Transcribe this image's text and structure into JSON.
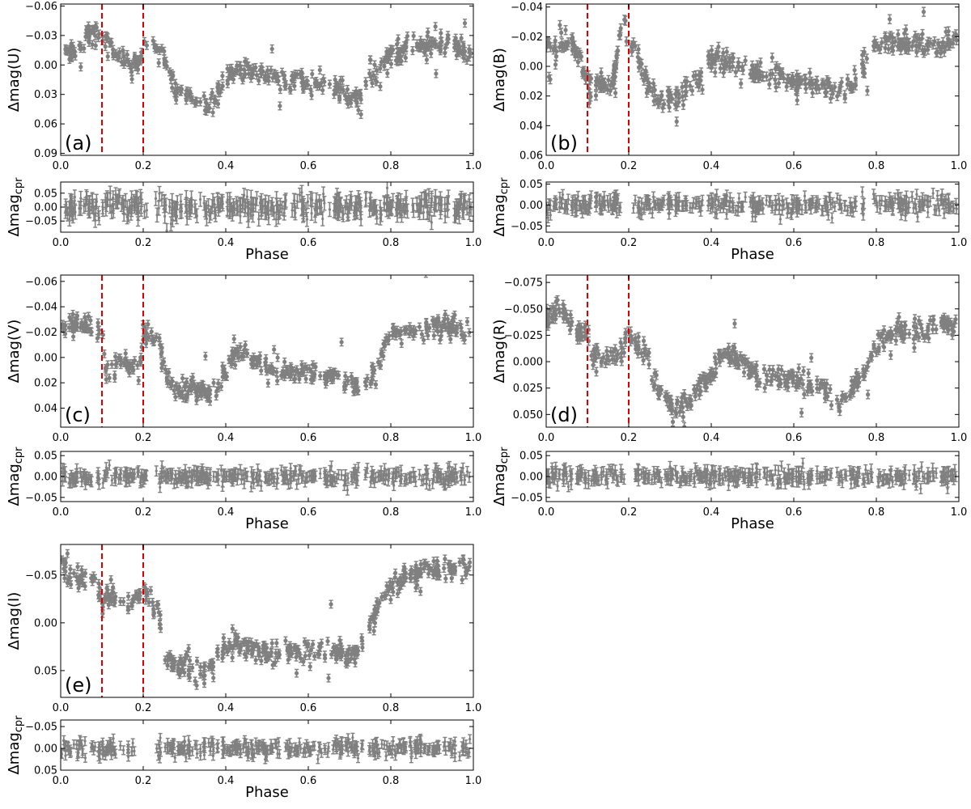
{
  "figure": {
    "colors": {
      "points": "#808080",
      "marker_lines": "#dd0000",
      "axes": "#000000"
    },
    "marker_phases": [
      0.1,
      0.2
    ]
  },
  "chart_data": [
    {
      "type": "scatter",
      "panel_label": "(a)",
      "title": "",
      "xlabel": "Phase",
      "ylabel_main": "Δmag(U)",
      "ylabel_resid_base": "Δmag",
      "ylabel_resid_sub": "cpr",
      "xlim": [
        0,
        1
      ],
      "ylim_main": [
        0.092,
        -0.062
      ],
      "inverted_y_main": true,
      "yticks_main": [
        -0.06,
        -0.03,
        0.0,
        0.03,
        0.06,
        0.09
      ],
      "ytick_labels_main": [
        "−0.06",
        "−0.03",
        "0.00",
        "0.03",
        "0.06",
        "0.09"
      ],
      "ylim_resid": [
        -0.09,
        0.09
      ],
      "yticks_resid": [
        -0.05,
        0.0,
        0.05
      ],
      "ytick_labels_resid": [
        "−0.05",
        "0.00",
        "0.05"
      ],
      "xticks": [
        0.0,
        0.2,
        0.4,
        0.6,
        0.8,
        1.0
      ],
      "xtick_labels": [
        "0.0",
        "0.2",
        "0.4",
        "0.6",
        "0.8",
        "1.0"
      ],
      "light_curve": [
        [
          0.0,
          -0.014
        ],
        [
          0.02,
          -0.01
        ],
        [
          0.04,
          -0.018
        ],
        [
          0.06,
          -0.03
        ],
        [
          0.08,
          -0.032
        ],
        [
          0.1,
          -0.025
        ],
        [
          0.12,
          -0.025
        ],
        [
          0.13,
          -0.012
        ],
        [
          0.15,
          -0.005
        ],
        [
          0.17,
          0.0
        ],
        [
          0.19,
          0.0
        ],
        [
          0.2,
          -0.022
        ],
        [
          0.22,
          -0.018
        ],
        [
          0.24,
          -0.012
        ],
        [
          0.26,
          0.005
        ],
        [
          0.28,
          0.025
        ],
        [
          0.3,
          0.025
        ],
        [
          0.33,
          0.035
        ],
        [
          0.36,
          0.04
        ],
        [
          0.38,
          0.03
        ],
        [
          0.4,
          0.015
        ],
        [
          0.42,
          0.005
        ],
        [
          0.45,
          0.0
        ],
        [
          0.5,
          0.012
        ],
        [
          0.55,
          0.015
        ],
        [
          0.6,
          0.018
        ],
        [
          0.65,
          0.025
        ],
        [
          0.7,
          0.03
        ],
        [
          0.72,
          0.035
        ],
        [
          0.75,
          0.015
        ],
        [
          0.78,
          0.0
        ],
        [
          0.8,
          -0.01
        ],
        [
          0.85,
          -0.02
        ],
        [
          0.9,
          -0.022
        ],
        [
          0.95,
          -0.02
        ],
        [
          0.97,
          -0.015
        ]
      ],
      "light_curve_error": 0.004,
      "residual_error": 0.025,
      "residual_scatter": 0.035,
      "residual_gaps": [
        [
          0.21,
          0.23
        ],
        [
          0.55,
          0.56
        ]
      ],
      "n_points": 430
    },
    {
      "type": "scatter",
      "panel_label": "(b)",
      "title": "",
      "xlabel": "Phase",
      "ylabel_main": "Δmag(B)",
      "ylabel_resid_base": "Δmag",
      "ylabel_resid_sub": "cpr",
      "xlim": [
        0,
        1
      ],
      "ylim_main": [
        0.06,
        -0.042
      ],
      "inverted_y_main": true,
      "yticks_main": [
        -0.04,
        -0.02,
        0.0,
        0.02,
        0.04,
        0.06
      ],
      "ytick_labels_main": [
        "−0.04",
        "−0.02",
        "0.00",
        "0.02",
        "0.04",
        "0.06"
      ],
      "ylim_resid": [
        -0.065,
        0.055
      ],
      "yticks_resid": [
        -0.05,
        0.0,
        0.05
      ],
      "ytick_labels_resid": [
        "−0.05",
        "0.00",
        "0.05"
      ],
      "xticks": [
        0.0,
        0.2,
        0.4,
        0.6,
        0.8,
        1.0
      ],
      "xtick_labels": [
        "0.0",
        "0.2",
        "0.4",
        "0.6",
        "0.8",
        "1.0"
      ],
      "light_curve": [
        [
          0.0,
          -0.015
        ],
        [
          0.02,
          -0.012
        ],
        [
          0.04,
          -0.018
        ],
        [
          0.06,
          -0.016
        ],
        [
          0.08,
          -0.008
        ],
        [
          0.1,
          0.012
        ],
        [
          0.12,
          0.014
        ],
        [
          0.14,
          0.01
        ],
        [
          0.16,
          0.012
        ],
        [
          0.18,
          -0.02
        ],
        [
          0.2,
          -0.012
        ],
        [
          0.22,
          -0.008
        ],
        [
          0.24,
          0.005
        ],
        [
          0.26,
          0.018
        ],
        [
          0.28,
          0.022
        ],
        [
          0.3,
          0.022
        ],
        [
          0.33,
          0.018
        ],
        [
          0.36,
          0.012
        ],
        [
          0.38,
          0.008
        ],
        [
          0.4,
          -0.005
        ],
        [
          0.45,
          -0.004
        ],
        [
          0.5,
          0.005
        ],
        [
          0.55,
          0.008
        ],
        [
          0.6,
          0.01
        ],
        [
          0.65,
          0.012
        ],
        [
          0.7,
          0.015
        ],
        [
          0.72,
          0.02
        ],
        [
          0.75,
          0.01
        ],
        [
          0.78,
          -0.005
        ],
        [
          0.8,
          -0.015
        ],
        [
          0.85,
          -0.015
        ],
        [
          0.9,
          -0.015
        ],
        [
          0.95,
          -0.012
        ],
        [
          0.97,
          -0.018
        ]
      ],
      "light_curve_error": 0.003,
      "residual_error": 0.012,
      "residual_scatter": 0.018,
      "residual_gaps": [
        [
          0.18,
          0.21
        ],
        [
          0.77,
          0.78
        ]
      ],
      "n_points": 430
    },
    {
      "type": "scatter",
      "panel_label": "(c)",
      "title": "",
      "xlabel": "Phase",
      "ylabel_main": "Δmag(V)",
      "ylabel_resid_base": "Δmag",
      "ylabel_resid_sub": "cpr",
      "xlim": [
        0,
        1
      ],
      "ylim_main": [
        0.055,
        -0.065
      ],
      "inverted_y_main": true,
      "yticks_main": [
        -0.06,
        -0.04,
        -0.02,
        0.0,
        0.02,
        0.04
      ],
      "ytick_labels_main": [
        "−0.06",
        "−0.04",
        "−0.02",
        "0.00",
        "0.02",
        "0.04"
      ],
      "ylim_resid": [
        -0.06,
        0.06
      ],
      "yticks_resid": [
        -0.05,
        0.0,
        0.05
      ],
      "ytick_labels_resid": [
        "−0.05",
        "0.00",
        "0.05"
      ],
      "xticks": [
        0.0,
        0.2,
        0.4,
        0.6,
        0.8,
        1.0
      ],
      "xtick_labels": [
        "0.0",
        "0.2",
        "0.4",
        "0.6",
        "0.8",
        "1.0"
      ],
      "light_curve": [
        [
          0.0,
          -0.018
        ],
        [
          0.02,
          -0.03
        ],
        [
          0.04,
          -0.028
        ],
        [
          0.06,
          -0.025
        ],
        [
          0.08,
          -0.03
        ],
        [
          0.1,
          -0.02
        ],
        [
          0.11,
          0.01
        ],
        [
          0.13,
          0.008
        ],
        [
          0.15,
          0.002
        ],
        [
          0.17,
          0.008
        ],
        [
          0.19,
          0.01
        ],
        [
          0.2,
          -0.018
        ],
        [
          0.22,
          -0.018
        ],
        [
          0.24,
          -0.01
        ],
        [
          0.26,
          0.018
        ],
        [
          0.28,
          0.025
        ],
        [
          0.3,
          0.025
        ],
        [
          0.33,
          0.025
        ],
        [
          0.36,
          0.03
        ],
        [
          0.38,
          0.028
        ],
        [
          0.4,
          0.015
        ],
        [
          0.42,
          -0.002
        ],
        [
          0.45,
          -0.002
        ],
        [
          0.5,
          0.01
        ],
        [
          0.55,
          0.01
        ],
        [
          0.6,
          0.012
        ],
        [
          0.65,
          0.016
        ],
        [
          0.7,
          0.02
        ],
        [
          0.72,
          0.024
        ],
        [
          0.75,
          0.018
        ],
        [
          0.78,
          0.0
        ],
        [
          0.8,
          -0.02
        ],
        [
          0.85,
          -0.022
        ],
        [
          0.9,
          -0.024
        ],
        [
          0.95,
          -0.025
        ],
        [
          0.97,
          -0.022
        ]
      ],
      "light_curve_error": 0.003,
      "residual_error": 0.012,
      "residual_scatter": 0.016,
      "residual_gaps": [
        [
          0.21,
          0.23
        ]
      ],
      "n_points": 430
    },
    {
      "type": "scatter",
      "panel_label": "(d)",
      "title": "",
      "xlabel": "Phase",
      "ylabel_main": "Δmag(R)",
      "ylabel_resid_base": "Δmag",
      "ylabel_resid_sub": "cpr",
      "xlim": [
        0,
        1
      ],
      "ylim_main": [
        0.062,
        -0.082
      ],
      "inverted_y_main": true,
      "yticks_main": [
        -0.075,
        -0.05,
        -0.025,
        0.0,
        0.025,
        0.05
      ],
      "ytick_labels_main": [
        "−0.075",
        "−0.050",
        "−0.025",
        "0.000",
        "0.025",
        "0.050"
      ],
      "ylim_resid": [
        -0.06,
        0.06
      ],
      "yticks_resid": [
        -0.05,
        0.0,
        0.05
      ],
      "ytick_labels_resid": [
        "−0.05",
        "0.00",
        "0.05"
      ],
      "xticks": [
        0.0,
        0.2,
        0.4,
        0.6,
        0.8,
        1.0
      ],
      "xtick_labels": [
        "0.0",
        "0.2",
        "0.4",
        "0.6",
        "0.8",
        "1.0"
      ],
      "light_curve": [
        [
          0.0,
          -0.04
        ],
        [
          0.02,
          -0.045
        ],
        [
          0.04,
          -0.05
        ],
        [
          0.06,
          -0.035
        ],
        [
          0.08,
          -0.028
        ],
        [
          0.1,
          -0.025
        ],
        [
          0.12,
          -0.005
        ],
        [
          0.15,
          -0.008
        ],
        [
          0.18,
          -0.005
        ],
        [
          0.2,
          -0.025
        ],
        [
          0.22,
          -0.015
        ],
        [
          0.24,
          -0.01
        ],
        [
          0.26,
          0.015
        ],
        [
          0.28,
          0.03
        ],
        [
          0.3,
          0.04
        ],
        [
          0.33,
          0.045
        ],
        [
          0.36,
          0.035
        ],
        [
          0.38,
          0.02
        ],
        [
          0.4,
          0.01
        ],
        [
          0.42,
          -0.005
        ],
        [
          0.45,
          -0.005
        ],
        [
          0.5,
          0.01
        ],
        [
          0.55,
          0.015
        ],
        [
          0.6,
          0.018
        ],
        [
          0.65,
          0.025
        ],
        [
          0.7,
          0.035
        ],
        [
          0.72,
          0.04
        ],
        [
          0.75,
          0.02
        ],
        [
          0.78,
          0.0
        ],
        [
          0.8,
          -0.015
        ],
        [
          0.85,
          -0.03
        ],
        [
          0.9,
          -0.03
        ],
        [
          0.95,
          -0.035
        ],
        [
          0.97,
          -0.035
        ]
      ],
      "light_curve_error": 0.004,
      "residual_error": 0.012,
      "residual_scatter": 0.016,
      "residual_gaps": [
        [
          0.19,
          0.21
        ],
        [
          0.79,
          0.8
        ]
      ],
      "n_points": 430
    },
    {
      "type": "scatter",
      "panel_label": "(e)",
      "title": "",
      "xlabel": "Phase",
      "ylabel_main": "Δmag(I)",
      "ylabel_resid_base": "Δmag",
      "ylabel_resid_sub": "cpr",
      "xlim": [
        0,
        1
      ],
      "ylim_main": [
        0.078,
        -0.082
      ],
      "inverted_y_main": true,
      "yticks_main": [
        -0.05,
        0.0,
        0.05
      ],
      "ytick_labels_main": [
        "−0.05",
        "0.00",
        "0.05"
      ],
      "ylim_resid": [
        0.05,
        -0.065
      ],
      "inverted_y_resid": true,
      "yticks_resid": [
        -0.05,
        0.0,
        0.05
      ],
      "ytick_labels_resid": [
        "−0.05",
        "0.00",
        "0.05"
      ],
      "xticks": [
        0.0,
        0.2,
        0.4,
        0.6,
        0.8,
        1.0
      ],
      "xtick_labels": [
        "0.0",
        "0.2",
        "0.4",
        "0.6",
        "0.8",
        "1.0"
      ],
      "light_curve": [
        [
          0.0,
          -0.06
        ],
        [
          0.02,
          -0.05
        ],
        [
          0.04,
          -0.048
        ],
        [
          0.06,
          -0.045
        ],
        [
          0.08,
          -0.048
        ],
        [
          0.09,
          -0.04
        ],
        [
          0.1,
          -0.015
        ],
        [
          0.11,
          -0.025
        ],
        [
          0.13,
          -0.025
        ],
        [
          0.15,
          -0.022
        ],
        [
          0.17,
          -0.018
        ],
        [
          0.2,
          -0.033
        ],
        [
          0.22,
          -0.025
        ],
        [
          0.24,
          -0.005
        ],
        [
          0.25,
          0.04
        ],
        [
          0.28,
          0.043
        ],
        [
          0.3,
          0.045
        ],
        [
          0.33,
          0.05
        ],
        [
          0.36,
          0.05
        ],
        [
          0.38,
          0.035
        ],
        [
          0.4,
          0.025
        ],
        [
          0.42,
          0.02
        ],
        [
          0.45,
          0.025
        ],
        [
          0.5,
          0.03
        ],
        [
          0.55,
          0.03
        ],
        [
          0.6,
          0.03
        ],
        [
          0.65,
          0.03
        ],
        [
          0.7,
          0.033
        ],
        [
          0.72,
          0.03
        ],
        [
          0.74,
          0.015
        ],
        [
          0.76,
          -0.005
        ],
        [
          0.78,
          -0.03
        ],
        [
          0.8,
          -0.04
        ],
        [
          0.85,
          -0.05
        ],
        [
          0.9,
          -0.055
        ],
        [
          0.95,
          -0.055
        ],
        [
          0.97,
          -0.058
        ]
      ],
      "light_curve_error": 0.004,
      "residual_error": 0.01,
      "residual_scatter": 0.016,
      "residual_gaps": [
        [
          0.18,
          0.23
        ],
        [
          0.65,
          0.66
        ]
      ],
      "n_points": 430
    }
  ]
}
